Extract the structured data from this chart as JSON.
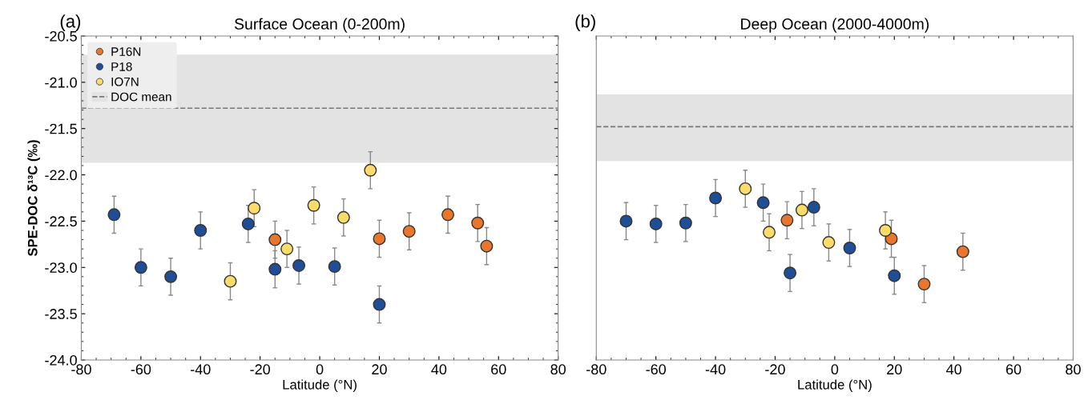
{
  "chart_data": [
    {
      "type": "scatter",
      "title": "Surface Ocean (0-200m)",
      "xlabel": "Latitude (°N)",
      "ylabel": "SPE-DOC δ¹³C (‰)",
      "annotations": [
        "(a)"
      ],
      "xlim": [
        -80,
        80
      ],
      "xticks": [
        -80,
        -60,
        -40,
        -20,
        0,
        20,
        40,
        60,
        80
      ],
      "ylim": [
        -24.0,
        -20.5
      ],
      "yticks": [
        {
          "value": -24.0,
          "label": "-24.0"
        },
        {
          "value": -23.5,
          "label": "-23.5"
        },
        {
          "value": -23.0,
          "label": "-23.0"
        },
        {
          "value": -22.5,
          "label": "-22.5"
        },
        {
          "value": -22.0,
          "label": "-22.0"
        },
        {
          "value": -21.5,
          "label": "-21.5"
        },
        {
          "value": -21.0,
          "label": "-21.0"
        },
        {
          "value": -20.5,
          "label": "-20.5"
        }
      ],
      "marker": "circle",
      "grid": false,
      "legend": "top left",
      "bands": [
        {
          "axis": "y",
          "from": -21.87,
          "to": -20.7,
          "color": "#e3e3e3"
        }
      ],
      "ref_lines": [
        {
          "axis": "y",
          "value": -21.28,
          "label": "DOC mean",
          "color": "#777777",
          "line_style": "dashed"
        }
      ],
      "series": [
        {
          "name": "P16N",
          "color": "#e8762d",
          "x": [
            -15,
            20,
            30,
            43,
            53,
            56
          ],
          "values": [
            -22.7,
            -22.69,
            -22.61,
            -22.43,
            -22.52,
            -22.77
          ],
          "errors": [
            0.2,
            0.2,
            0.2,
            0.2,
            0.2,
            0.2
          ]
        },
        {
          "name": "P18",
          "color": "#1f4e96",
          "x": [
            -69,
            -60,
            -50,
            -40,
            -24,
            -15,
            -7,
            5,
            20
          ],
          "values": [
            -22.43,
            -23.0,
            -23.1,
            -22.6,
            -22.53,
            -23.02,
            -22.98,
            -22.99,
            -23.4
          ],
          "errors": [
            0.2,
            0.2,
            0.2,
            0.2,
            0.2,
            0.2,
            0.2,
            0.2,
            0.2
          ]
        },
        {
          "name": "IO7N",
          "color": "#fbdc6a",
          "x": [
            -30,
            -22,
            -11,
            -2,
            8,
            17
          ],
          "values": [
            -23.15,
            -22.36,
            -22.8,
            -22.33,
            -22.46,
            -21.95
          ],
          "errors": [
            0.2,
            0.2,
            0.2,
            0.2,
            0.2,
            0.2
          ]
        }
      ]
    },
    {
      "type": "scatter",
      "title": "Deep Ocean (2000-4000m)",
      "xlabel": "Latitude (°N)",
      "annotations": [
        "(b)"
      ],
      "xlim": [
        -80,
        80
      ],
      "xticks": [
        -80,
        -60,
        -40,
        -20,
        0,
        20,
        40,
        60,
        80
      ],
      "ylim": [
        -24.0,
        -20.5
      ],
      "tick_labels": "x",
      "marker": "circle",
      "grid": false,
      "bands": [
        {
          "axis": "y",
          "from": -21.85,
          "to": -21.13,
          "color": "#e3e3e3"
        }
      ],
      "ref_lines": [
        {
          "axis": "y",
          "value": -21.48,
          "color": "#777777",
          "line_style": "dashed"
        }
      ],
      "series": [
        {
          "color": "#e8762d",
          "x": [
            -16,
            19,
            30,
            43
          ],
          "values": [
            -22.49,
            -22.69,
            -23.18,
            -22.83
          ],
          "errors": [
            0.2,
            0.2,
            0.2,
            0.2
          ]
        },
        {
          "color": "#1f4e96",
          "x": [
            -70,
            -60,
            -50,
            -40,
            -24,
            -15,
            -7,
            5,
            20
          ],
          "values": [
            -22.5,
            -22.53,
            -22.52,
            -22.25,
            -22.3,
            -23.06,
            -22.35,
            -22.79,
            -23.09
          ],
          "errors": [
            0.2,
            0.2,
            0.2,
            0.2,
            0.2,
            0.2,
            0.2,
            0.2,
            0.2
          ]
        },
        {
          "color": "#fbdc6a",
          "x": [
            -30,
            -22,
            -11,
            -2,
            17
          ],
          "values": [
            -22.15,
            -22.62,
            -22.38,
            -22.73,
            -22.6
          ],
          "errors": [
            0.2,
            0.2,
            0.2,
            0.2,
            0.2
          ]
        }
      ]
    }
  ]
}
